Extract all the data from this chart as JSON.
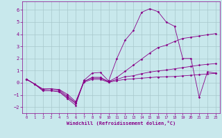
{
  "xlabel": "Windchill (Refroidissement éolien,°C)",
  "xlim": [
    -0.5,
    23.5
  ],
  "ylim": [
    -2.5,
    6.7
  ],
  "yticks": [
    -2,
    -1,
    0,
    1,
    2,
    3,
    4,
    5,
    6
  ],
  "xticks": [
    0,
    1,
    2,
    3,
    4,
    5,
    6,
    7,
    8,
    9,
    10,
    11,
    12,
    13,
    14,
    15,
    16,
    17,
    18,
    19,
    20,
    21,
    22,
    23
  ],
  "bg_color": "#c8e8ec",
  "line_color": "#880088",
  "grid_color": "#a8c8cc",
  "curves": [
    [
      0.3,
      -0.1,
      -0.65,
      -0.65,
      -0.75,
      -1.3,
      -1.85,
      0.2,
      0.8,
      0.85,
      0.15,
      2.0,
      3.5,
      4.3,
      5.8,
      6.1,
      5.85,
      5.0,
      4.65,
      2.0,
      2.0,
      -1.2,
      0.9,
      0.8
    ],
    [
      0.3,
      -0.1,
      -0.65,
      -0.65,
      -0.7,
      -1.2,
      -1.7,
      0.1,
      0.45,
      0.45,
      0.1,
      0.45,
      0.95,
      1.45,
      1.95,
      2.45,
      2.9,
      3.1,
      3.4,
      3.65,
      3.75,
      3.85,
      3.95,
      4.05
    ],
    [
      0.3,
      -0.1,
      -0.55,
      -0.5,
      -0.55,
      -0.95,
      -1.55,
      0.12,
      0.38,
      0.38,
      0.08,
      0.28,
      0.5,
      0.58,
      0.75,
      0.88,
      0.98,
      1.05,
      1.15,
      1.25,
      1.35,
      1.45,
      1.52,
      1.58
    ],
    [
      0.3,
      -0.1,
      -0.5,
      -0.5,
      -0.6,
      -1.1,
      -1.65,
      0.05,
      0.28,
      0.28,
      0.04,
      0.18,
      0.28,
      0.33,
      0.38,
      0.43,
      0.48,
      0.5,
      0.52,
      0.57,
      0.62,
      0.67,
      0.73,
      0.78
    ]
  ]
}
